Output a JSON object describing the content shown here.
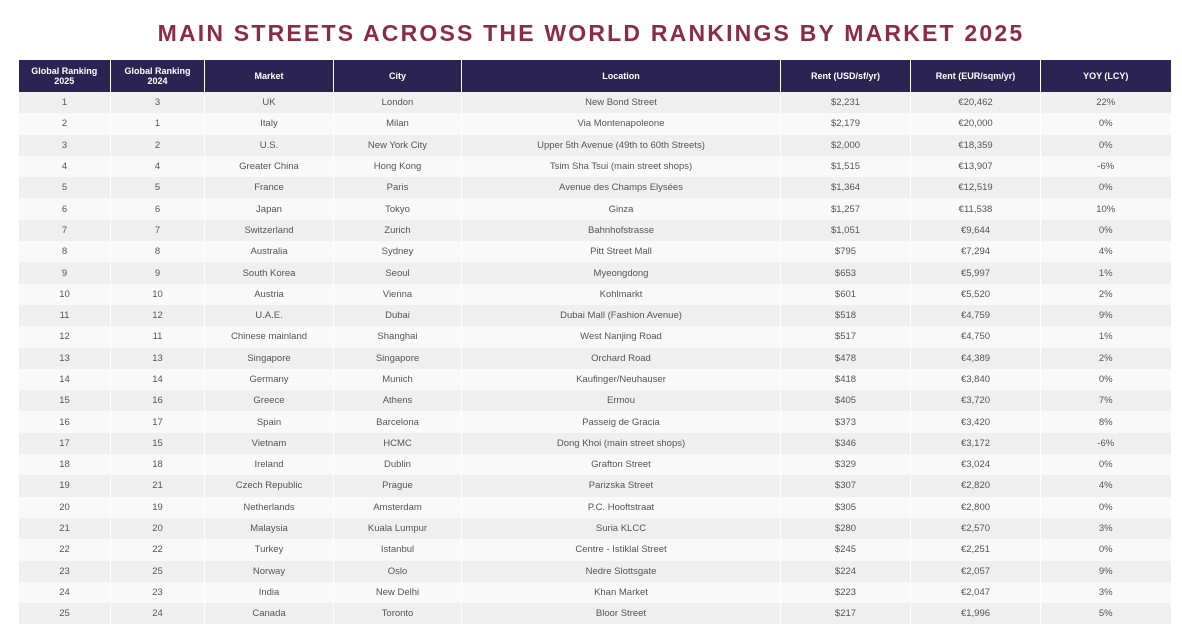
{
  "title": "MAIN STREETS ACROSS THE WORLD RANKINGS BY MARKET 2025",
  "table": {
    "headers": [
      "Global Ranking 2025",
      "Global Ranking 2024",
      "Market",
      "City",
      "Location",
      "Rent (USD/sf/yr)",
      "Rent (EUR/sqm/yr)",
      "YOY (LCY)"
    ],
    "rows": [
      [
        "1",
        "3",
        "UK",
        "London",
        "New Bond Street",
        "$2,231",
        "€20,462",
        "22%"
      ],
      [
        "2",
        "1",
        "Italy",
        "Milan",
        "Via Montenapoleone",
        "$2,179",
        "€20,000",
        "0%"
      ],
      [
        "3",
        "2",
        "U.S.",
        "New York City",
        "Upper 5th Avenue (49th to 60th Streets)",
        "$2,000",
        "€18,359",
        "0%"
      ],
      [
        "4",
        "4",
        "Greater China",
        "Hong Kong",
        "Tsim Sha Tsui (main street shops)",
        "$1,515",
        "€13,907",
        "-6%"
      ],
      [
        "5",
        "5",
        "France",
        "Paris",
        "Avenue des Champs Elysées",
        "$1,364",
        "€12,519",
        "0%"
      ],
      [
        "6",
        "6",
        "Japan",
        "Tokyo",
        "Ginza",
        "$1,257",
        "€11,538",
        "10%"
      ],
      [
        "7",
        "7",
        "Switzerland",
        "Zurich",
        "Bahnhofstrasse",
        "$1,051",
        "€9,644",
        "0%"
      ],
      [
        "8",
        "8",
        "Australia",
        "Sydney",
        "Pitt Street Mall",
        "$795",
        "€7,294",
        "4%"
      ],
      [
        "9",
        "9",
        "South Korea",
        "Seoul",
        "Myeongdong",
        "$653",
        "€5,997",
        "1%"
      ],
      [
        "10",
        "10",
        "Austria",
        "Vienna",
        "Kohlmarkt",
        "$601",
        "€5,520",
        "2%"
      ],
      [
        "11",
        "12",
        "U.A.E.",
        "Dubai",
        "Dubai Mall (Fashion Avenue)",
        "$518",
        "€4,759",
        "9%"
      ],
      [
        "12",
        "11",
        "Chinese mainland",
        "Shanghai",
        "West Nanjing Road",
        "$517",
        "€4,750",
        "1%"
      ],
      [
        "13",
        "13",
        "Singapore",
        "Singapore",
        "Orchard Road",
        "$478",
        "€4,389",
        "2%"
      ],
      [
        "14",
        "14",
        "Germany",
        "Munich",
        "Kaufinger/Neuhauser",
        "$418",
        "€3,840",
        "0%"
      ],
      [
        "15",
        "16",
        "Greece",
        "Athens",
        "Ermou",
        "$405",
        "€3,720",
        "7%"
      ],
      [
        "16",
        "17",
        "Spain",
        "Barcelona",
        "Passeig de Gracia",
        "$373",
        "€3,420",
        "8%"
      ],
      [
        "17",
        "15",
        "Vietnam",
        "HCMC",
        "Dong Khoi (main street shops)",
        "$346",
        "€3,172",
        "-6%"
      ],
      [
        "18",
        "18",
        "Ireland",
        "Dublin",
        "Grafton Street",
        "$329",
        "€3,024",
        "0%"
      ],
      [
        "19",
        "21",
        "Czech Republic",
        "Prague",
        "Parizska Street",
        "$307",
        "€2,820",
        "4%"
      ],
      [
        "20",
        "19",
        "Netherlands",
        "Amsterdam",
        "P.C. Hooftstraat",
        "$305",
        "€2,800",
        "0%"
      ],
      [
        "21",
        "20",
        "Malaysia",
        "Kuala Lumpur",
        "Suria KLCC",
        "$280",
        "€2,570",
        "3%"
      ],
      [
        "22",
        "22",
        "Turkey",
        "Istanbul",
        "Centre - Istiklal Street",
        "$245",
        "€2,251",
        "0%"
      ],
      [
        "23",
        "25",
        "Norway",
        "Oslo",
        "Nedre Slottsgate",
        "$224",
        "€2,057",
        "9%"
      ],
      [
        "24",
        "23",
        "India",
        "New Delhi",
        "Khan Market",
        "$223",
        "€2,047",
        "3%"
      ],
      [
        "25",
        "24",
        "Canada",
        "Toronto",
        "Bloor Street",
        "$217",
        "€1,996",
        "5%"
      ]
    ]
  }
}
